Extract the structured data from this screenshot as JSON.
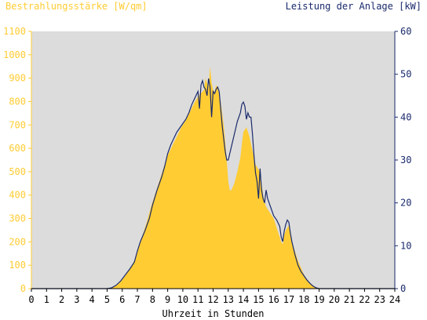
{
  "chart_data": {
    "type": "area",
    "ylabel_left": "Bestrahlungsstärke [W/qm]",
    "ylabel_right": "Leistung der Anlage [kW]",
    "xlabel": "Uhrzeit in Stunden",
    "xlim": [
      0,
      24
    ],
    "ylim_left": [
      0,
      1100
    ],
    "ylim_right": [
      0,
      60
    ],
    "xticks": [
      "0",
      "1",
      "2",
      "3",
      "4",
      "5",
      "6",
      "7",
      "8",
      "9",
      "10",
      "11",
      "12",
      "13",
      "14",
      "15",
      "16",
      "17",
      "18",
      "19",
      "20",
      "21",
      "22",
      "23",
      "24"
    ],
    "yticks_left": [
      "0",
      "100",
      "200",
      "300",
      "400",
      "500",
      "600",
      "700",
      "800",
      "900",
      "1000",
      "1100"
    ],
    "yticks_right": [
      "0",
      "10",
      "20",
      "30",
      "40",
      "50",
      "60"
    ],
    "grid": false,
    "series": [
      {
        "name": "Bestrahlungsstärke [W/qm]",
        "axis": "left",
        "kind": "area",
        "x": [
          0,
          5.0,
          5.3,
          5.6,
          5.9,
          6.2,
          6.5,
          6.8,
          7.0,
          7.3,
          7.6,
          7.9,
          8.2,
          8.5,
          8.8,
          9.0,
          9.3,
          9.6,
          9.9,
          10.2,
          10.5,
          10.8,
          11.0,
          11.2,
          11.4,
          11.5,
          11.6,
          11.7,
          11.8,
          11.9,
          12.0,
          12.1,
          12.2,
          12.3,
          12.5,
          12.7,
          12.9,
          13.0,
          13.1,
          13.2,
          13.4,
          13.6,
          13.8,
          13.9,
          14.0,
          14.2,
          14.4,
          14.6,
          14.7,
          14.8,
          14.9,
          15.0,
          15.1,
          15.2,
          15.3,
          15.4,
          15.5,
          15.6,
          15.8,
          16.0,
          16.2,
          16.4,
          16.5,
          16.6,
          16.7,
          16.8,
          16.9,
          17.0,
          17.1,
          17.2,
          17.4,
          17.6,
          17.8,
          18.0,
          18.2,
          18.4,
          18.6,
          18.8,
          19.0,
          19.2,
          19.4,
          24
        ],
        "y": [
          0,
          0,
          5,
          15,
          30,
          55,
          85,
          120,
          160,
          220,
          280,
          350,
          410,
          470,
          530,
          570,
          610,
          650,
          690,
          720,
          760,
          800,
          820,
          835,
          850,
          900,
          880,
          860,
          950,
          880,
          850,
          840,
          870,
          860,
          800,
          700,
          550,
          460,
          420,
          420,
          450,
          500,
          560,
          620,
          670,
          690,
          650,
          590,
          560,
          530,
          520,
          510,
          500,
          450,
          400,
          370,
          350,
          340,
          320,
          300,
          260,
          220,
          200,
          190,
          230,
          250,
          260,
          270,
          240,
          200,
          160,
          120,
          90,
          60,
          40,
          25,
          12,
          5,
          2,
          0,
          0,
          0
        ]
      },
      {
        "name": "Leistung der Anlage [kW]",
        "axis": "right",
        "kind": "line",
        "x": [
          0,
          5.0,
          5.3,
          5.6,
          5.9,
          6.2,
          6.5,
          6.8,
          7.0,
          7.2,
          7.5,
          7.8,
          8.0,
          8.3,
          8.6,
          8.8,
          9.0,
          9.2,
          9.4,
          9.6,
          9.8,
          10.0,
          10.2,
          10.4,
          10.6,
          10.8,
          11.0,
          11.1,
          11.2,
          11.3,
          11.4,
          11.5,
          11.6,
          11.7,
          11.8,
          11.9,
          12.0,
          12.1,
          12.2,
          12.3,
          12.4,
          12.6,
          12.8,
          12.9,
          13.0,
          13.2,
          13.4,
          13.6,
          13.8,
          13.9,
          14.0,
          14.1,
          14.2,
          14.3,
          14.4,
          14.5,
          14.6,
          14.7,
          14.8,
          14.9,
          15.0,
          15.1,
          15.2,
          15.3,
          15.4,
          15.5,
          15.6,
          15.7,
          15.8,
          16.0,
          16.2,
          16.4,
          16.5,
          16.6,
          16.7,
          16.8,
          16.9,
          17.0,
          17.1,
          17.2,
          17.4,
          17.6,
          17.8,
          18.0,
          18.2,
          18.4,
          18.6,
          18.8,
          19.0,
          19.2,
          19.5,
          24
        ],
        "y": [
          0,
          0,
          0.2,
          0.8,
          1.8,
          3.2,
          4.6,
          6.2,
          8.8,
          11.0,
          13.5,
          16.5,
          19.5,
          23.0,
          26.0,
          28.5,
          31.5,
          33.5,
          35.0,
          36.5,
          37.5,
          38.5,
          39.5,
          41.0,
          43.0,
          44.5,
          46.0,
          42.0,
          47.5,
          48.5,
          47.0,
          46.5,
          45.0,
          49.0,
          47.0,
          40.0,
          46.0,
          45.5,
          46.5,
          47.0,
          46.0,
          38.0,
          32.0,
          30.0,
          30.0,
          33.0,
          36.0,
          39.0,
          41.0,
          43.0,
          43.5,
          42.5,
          39.5,
          41.0,
          40.0,
          40.0,
          36.0,
          31.0,
          27.0,
          25.0,
          21.0,
          28.0,
          23.0,
          21.0,
          20.0,
          23.0,
          21.0,
          20.0,
          19.0,
          17.0,
          16.0,
          14.5,
          12.0,
          11.0,
          13.5,
          15.0,
          16.0,
          15.5,
          13.0,
          11.0,
          8.0,
          5.5,
          4.0,
          3.0,
          2.0,
          1.2,
          0.6,
          0.2,
          0,
          0,
          0,
          0
        ]
      }
    ],
    "colors": {
      "irradiance_fill": "#ffcc33",
      "power_line": "#1a2a6c",
      "plot_bg": "#dcdcdc",
      "left_axis": "#ffcc33",
      "right_axis": "#1a2a6c",
      "text_dark": "#000000"
    }
  }
}
